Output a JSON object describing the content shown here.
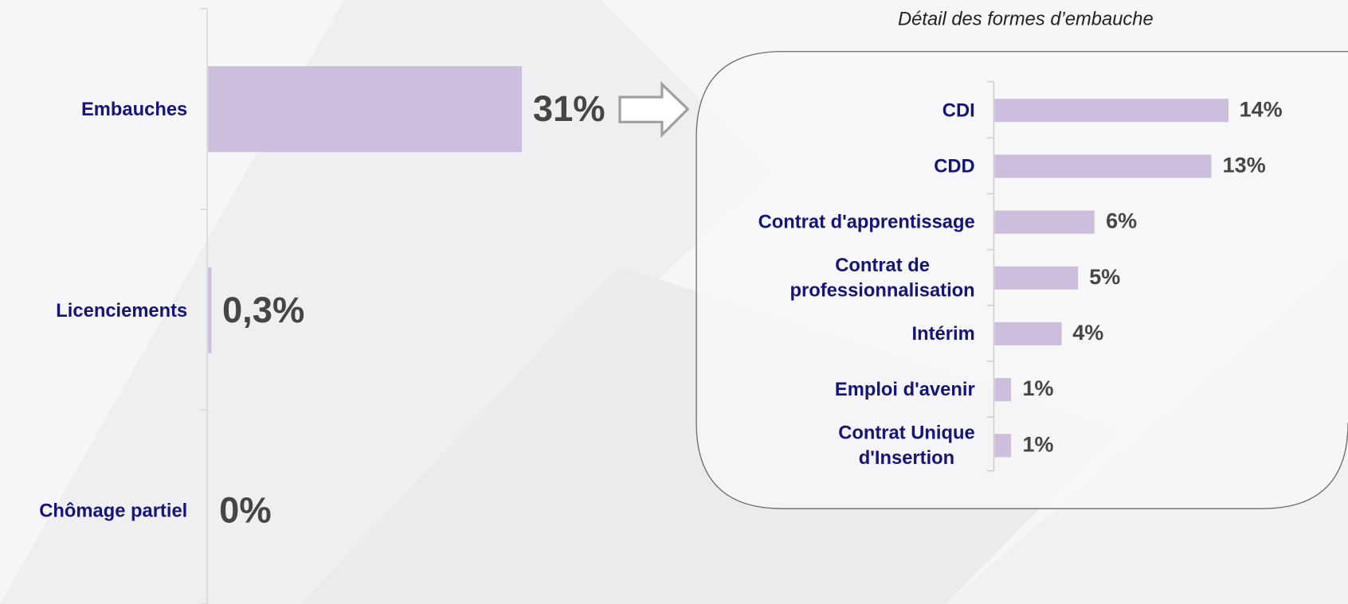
{
  "chart_data": [
    {
      "type": "bar",
      "orientation": "horizontal",
      "categories": [
        "Embauches",
        "Licenciements",
        "Chômage partiel"
      ],
      "values": [
        31,
        0.3,
        0
      ],
      "value_labels": [
        "31%",
        "0,3%",
        "0%"
      ],
      "color": "#cdbedd"
    },
    {
      "type": "bar",
      "orientation": "horizontal",
      "title": "Détail des formes d’embauche",
      "categories": [
        "CDI",
        "CDD",
        "Contrat d'apprentissage",
        "Contrat de\nprofessionnalisation",
        "Intérim",
        "Emploi d'avenir",
        "Contrat Unique\nd'Insertion"
      ],
      "values": [
        14,
        13,
        6,
        5,
        4,
        1,
        1
      ],
      "value_labels": [
        "14%",
        "13%",
        "6%",
        "5%",
        "4%",
        "1%",
        "1%"
      ],
      "color": "#cdbedd"
    }
  ]
}
